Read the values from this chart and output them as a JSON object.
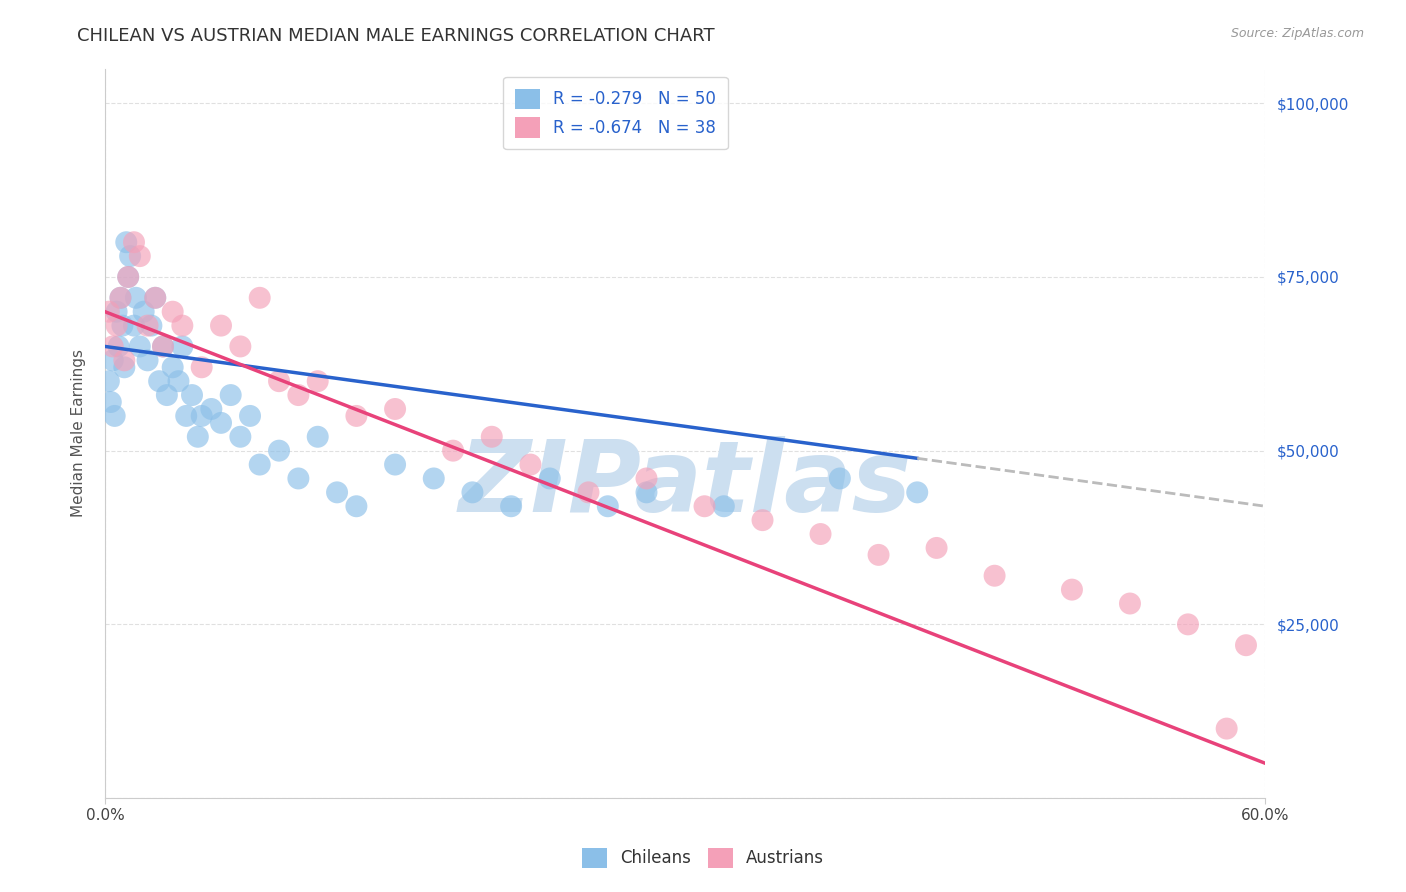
{
  "title": "CHILEAN VS AUSTRIAN MEDIAN MALE EARNINGS CORRELATION CHART",
  "source": "Source: ZipAtlas.com",
  "ylabel": "Median Male Earnings",
  "xlim": [
    0.0,
    0.6
  ],
  "ylim": [
    0,
    105000
  ],
  "R_chileans": -0.279,
  "N_chileans": 50,
  "R_austrians": -0.674,
  "N_austrians": 38,
  "color_chileans": "#8BBFE8",
  "color_austrians": "#F4A0B8",
  "color_line_chileans": "#2962CC",
  "color_line_austrians": "#E8427A",
  "color_dashed": "#BBBBBB",
  "background_color": "#FFFFFF",
  "grid_color": "#DDDDDD",
  "title_fontsize": 13,
  "axis_label_fontsize": 11,
  "tick_fontsize": 11,
  "legend_fontsize": 12,
  "watermark_text": "ZIPatlas",
  "watermark_color": "#CCDFF0",
  "blue_line_x0": 0.0,
  "blue_line_y0": 65000,
  "blue_line_x1": 0.6,
  "blue_line_y1": 42000,
  "blue_line_solid_end": 0.42,
  "pink_line_x0": 0.0,
  "pink_line_y0": 70000,
  "pink_line_x1": 0.6,
  "pink_line_y1": 5000,
  "chileans_x": [
    0.002,
    0.003,
    0.004,
    0.005,
    0.006,
    0.007,
    0.008,
    0.009,
    0.01,
    0.011,
    0.012,
    0.013,
    0.015,
    0.016,
    0.018,
    0.02,
    0.022,
    0.024,
    0.026,
    0.028,
    0.03,
    0.032,
    0.035,
    0.038,
    0.04,
    0.042,
    0.045,
    0.048,
    0.05,
    0.055,
    0.06,
    0.065,
    0.07,
    0.075,
    0.08,
    0.09,
    0.1,
    0.11,
    0.12,
    0.13,
    0.15,
    0.17,
    0.19,
    0.21,
    0.23,
    0.26,
    0.28,
    0.32,
    0.38,
    0.42
  ],
  "chileans_y": [
    60000,
    57000,
    63000,
    55000,
    70000,
    65000,
    72000,
    68000,
    62000,
    80000,
    75000,
    78000,
    68000,
    72000,
    65000,
    70000,
    63000,
    68000,
    72000,
    60000,
    65000,
    58000,
    62000,
    60000,
    65000,
    55000,
    58000,
    52000,
    55000,
    56000,
    54000,
    58000,
    52000,
    55000,
    48000,
    50000,
    46000,
    52000,
    44000,
    42000,
    48000,
    46000,
    44000,
    42000,
    46000,
    42000,
    44000,
    42000,
    46000,
    44000
  ],
  "austrians_x": [
    0.002,
    0.004,
    0.006,
    0.008,
    0.01,
    0.012,
    0.015,
    0.018,
    0.022,
    0.026,
    0.03,
    0.035,
    0.04,
    0.05,
    0.06,
    0.07,
    0.08,
    0.09,
    0.1,
    0.11,
    0.13,
    0.15,
    0.18,
    0.2,
    0.22,
    0.25,
    0.28,
    0.31,
    0.34,
    0.37,
    0.4,
    0.43,
    0.46,
    0.5,
    0.53,
    0.56,
    0.58,
    0.59
  ],
  "austrians_y": [
    70000,
    65000,
    68000,
    72000,
    63000,
    75000,
    80000,
    78000,
    68000,
    72000,
    65000,
    70000,
    68000,
    62000,
    68000,
    65000,
    72000,
    60000,
    58000,
    60000,
    55000,
    56000,
    50000,
    52000,
    48000,
    44000,
    46000,
    42000,
    40000,
    38000,
    35000,
    36000,
    32000,
    30000,
    28000,
    25000,
    10000,
    22000
  ]
}
